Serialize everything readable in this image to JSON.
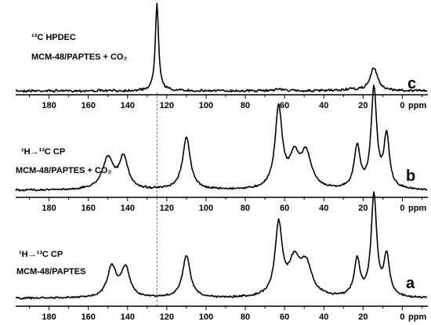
{
  "chart_data": [
    {
      "type": "line",
      "panel": "c",
      "label_line1": "¹³C HPDEC",
      "label_line2": "MCM-48/PAPTES + CO₂",
      "letter": "c",
      "xunit": "ppm",
      "xlim": [
        197,
        -13
      ],
      "ticks": [
        180,
        160,
        140,
        120,
        100,
        80,
        60,
        40,
        20,
        0
      ],
      "reference_line_ppm": 125,
      "peaks": [
        {
          "ppm": 125,
          "height": 1.0,
          "width": 1.0
        },
        {
          "ppm": 14.5,
          "height": 0.26,
          "width": 2.3
        },
        {
          "ppm": 63,
          "height": 0.02,
          "width": 3
        },
        {
          "ppm": 27,
          "height": 0.015,
          "width": 3
        }
      ]
    },
    {
      "type": "line",
      "panel": "b",
      "label_line1": "¹H→¹³C CP",
      "label_line2": "MCM-48/PAPTES + CO₂",
      "letter": "b",
      "xunit": "ppm",
      "xlim": [
        197,
        -13
      ],
      "ticks": [
        180,
        160,
        140,
        120,
        100,
        80,
        60,
        40,
        20,
        0
      ],
      "peaks": [
        {
          "ppm": 150,
          "height": 0.31,
          "width": 3.5
        },
        {
          "ppm": 142,
          "height": 0.31,
          "width": 2.6
        },
        {
          "ppm": 110,
          "height": 0.52,
          "width": 2.4
        },
        {
          "ppm": 63,
          "height": 0.8,
          "width": 2.2
        },
        {
          "ppm": 55,
          "height": 0.3,
          "width": 3.0
        },
        {
          "ppm": 49,
          "height": 0.34,
          "width": 3.2
        },
        {
          "ppm": 23,
          "height": 0.42,
          "width": 1.8
        },
        {
          "ppm": 14.5,
          "height": 1.0,
          "width": 1.7
        },
        {
          "ppm": 8,
          "height": 0.52,
          "width": 1.7
        }
      ]
    },
    {
      "type": "line",
      "panel": "a",
      "label_line1": "¹H→¹³C CP",
      "label_line2": "MCM-48/PAPTES",
      "letter": "a",
      "xunit": "ppm",
      "xlim": [
        197,
        -13
      ],
      "ticks": [
        180,
        160,
        140,
        120,
        100,
        80,
        60,
        40,
        20,
        0
      ],
      "peaks": [
        {
          "ppm": 148,
          "height": 0.3,
          "width": 2.8
        },
        {
          "ppm": 141,
          "height": 0.29,
          "width": 2.6
        },
        {
          "ppm": 110,
          "height": 0.41,
          "width": 2.4
        },
        {
          "ppm": 63,
          "height": 0.7,
          "width": 2.2
        },
        {
          "ppm": 55,
          "height": 0.33,
          "width": 3.5
        },
        {
          "ppm": 49,
          "height": 0.3,
          "width": 3.5
        },
        {
          "ppm": 23,
          "height": 0.36,
          "width": 1.8
        },
        {
          "ppm": 14.5,
          "height": 1.0,
          "width": 1.7
        },
        {
          "ppm": 8,
          "height": 0.4,
          "width": 1.7
        }
      ]
    }
  ]
}
